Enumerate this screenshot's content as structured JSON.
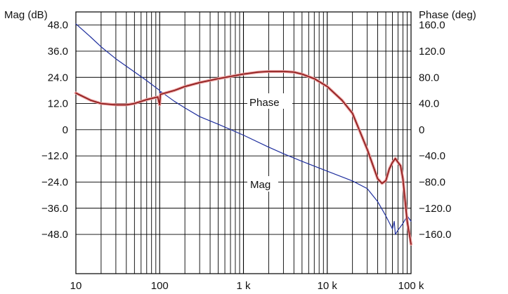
{
  "chart_data": {
    "type": "line",
    "x_scale": "log",
    "xlim": [
      10,
      100000
    ],
    "x_ticks": [
      {
        "value": 10,
        "label": "10"
      },
      {
        "value": 100,
        "label": "100"
      },
      {
        "value": 1000,
        "label": "1 k"
      },
      {
        "value": 10000,
        "label": "10 k"
      },
      {
        "value": 100000,
        "label": "100 k"
      }
    ],
    "y_left": {
      "title": "Mag (dB)",
      "lim": [
        -66,
        54
      ],
      "ticks": [
        {
          "value": 48,
          "label": "48.0"
        },
        {
          "value": 36,
          "label": "36.0"
        },
        {
          "value": 24,
          "label": "24.0"
        },
        {
          "value": 12,
          "label": "12.0"
        },
        {
          "value": 0,
          "label": "0"
        },
        {
          "value": -12,
          "label": "−12.0"
        },
        {
          "value": -24,
          "label": "−24.0"
        },
        {
          "value": -36,
          "label": "−36.0"
        },
        {
          "value": -48,
          "label": "−48.0"
        }
      ]
    },
    "y_right": {
      "title": "Phase (deg)",
      "lim": [
        -220,
        180
      ],
      "ticks": [
        {
          "value": 160,
          "label": "160.0"
        },
        {
          "value": 120,
          "label": "120.0"
        },
        {
          "value": 80,
          "label": "80.0"
        },
        {
          "value": 40,
          "label": "40.0"
        },
        {
          "value": 0,
          "label": "0"
        },
        {
          "value": -40,
          "label": "−40.0"
        },
        {
          "value": -80,
          "label": "−80.0"
        },
        {
          "value": -120,
          "label": "−120.0"
        },
        {
          "value": -160,
          "label": "−160.0"
        }
      ]
    },
    "grid": true,
    "series": [
      {
        "name": "Mag",
        "axis": "left",
        "color": "#1f2f9e",
        "points": [
          [
            10,
            48.5
          ],
          [
            15,
            42.5
          ],
          [
            20,
            38.0
          ],
          [
            30,
            32.5
          ],
          [
            50,
            26.5
          ],
          [
            70,
            22.5
          ],
          [
            100,
            18.0
          ],
          [
            101,
            15.5
          ],
          [
            103,
            17.5
          ],
          [
            150,
            13.0
          ],
          [
            200,
            10.0
          ],
          [
            300,
            6.0
          ],
          [
            500,
            2.5
          ],
          [
            1000,
            -2.5
          ],
          [
            2000,
            -8.0
          ],
          [
            3000,
            -11.0
          ],
          [
            5000,
            -14.5
          ],
          [
            10000,
            -19.0
          ],
          [
            20000,
            -23.5
          ],
          [
            30000,
            -27.0
          ],
          [
            40000,
            -33.0
          ],
          [
            50000,
            -39.5
          ],
          [
            60000,
            -45.5
          ],
          [
            63000,
            -42.0
          ],
          [
            65000,
            -48.0
          ],
          [
            70000,
            -46.0
          ],
          [
            80000,
            -43.0
          ],
          [
            90000,
            -39.5
          ],
          [
            100000,
            -42.0
          ]
        ]
      },
      {
        "name": "Phase",
        "axis": "right",
        "color": "#8b1a1a",
        "points": [
          [
            10,
            56.0
          ],
          [
            15,
            45.0
          ],
          [
            20,
            40.0
          ],
          [
            30,
            38.0
          ],
          [
            40,
            38.0
          ],
          [
            50,
            40.0
          ],
          [
            70,
            46.0
          ],
          [
            95,
            50.0
          ],
          [
            100,
            38.0
          ],
          [
            102,
            54.0
          ],
          [
            150,
            60.0
          ],
          [
            200,
            66.0
          ],
          [
            300,
            72.0
          ],
          [
            500,
            78.0
          ],
          [
            1000,
            85.0
          ],
          [
            1500,
            88.0
          ],
          [
            2000,
            89.0
          ],
          [
            3000,
            89.0
          ],
          [
            4000,
            88.0
          ],
          [
            5000,
            85.0
          ],
          [
            7000,
            78.0
          ],
          [
            10000,
            66.0
          ],
          [
            15000,
            45.0
          ],
          [
            20000,
            25.0
          ],
          [
            30000,
            -30.0
          ],
          [
            40000,
            -75.0
          ],
          [
            45000,
            -82.0
          ],
          [
            50000,
            -78.0
          ],
          [
            55000,
            -60.0
          ],
          [
            60000,
            -50.0
          ],
          [
            65000,
            -44.0
          ],
          [
            70000,
            -50.0
          ],
          [
            75000,
            -55.0
          ],
          [
            80000,
            -75.0
          ],
          [
            90000,
            -140.0
          ],
          [
            100000,
            -175.0
          ]
        ]
      }
    ],
    "annotations": [
      {
        "text": "Phase",
        "series": "Phase"
      },
      {
        "text": "Mag",
        "series": "Mag"
      }
    ]
  }
}
